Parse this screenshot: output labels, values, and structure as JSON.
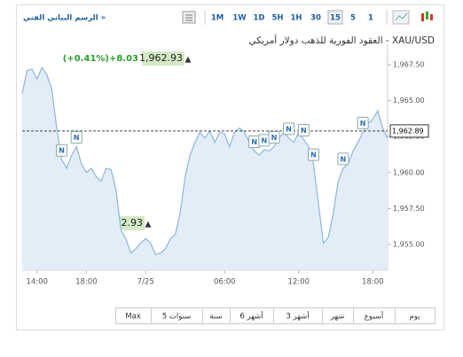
{
  "toolbar": {
    "link": "الرسم البياني الفني »",
    "intervals": [
      "1M",
      "1W",
      "1D",
      "5H",
      "1H",
      "30",
      "15",
      "5",
      "1"
    ],
    "selected_interval": "15"
  },
  "quote": {
    "change_pct": "(+0.41%)",
    "change": "+8.03",
    "price": "1,962.93"
  },
  "chart_data": {
    "type": "line",
    "title": "XAU/USD - العقود الفورية للذهب دولار أمريكي",
    "color": "#8db6da",
    "fill": "#e3edf7",
    "categories": [
      null,
      null,
      null,
      "14:00",
      null,
      null,
      null,
      null,
      null,
      null,
      null,
      null,
      null,
      "18:00",
      null,
      null,
      null,
      null,
      null,
      null,
      null,
      null,
      null,
      null,
      null,
      "7/25",
      null,
      null,
      null,
      null,
      null,
      null,
      null,
      null,
      null,
      null,
      null,
      null,
      null,
      null,
      null,
      "06:00",
      null,
      null,
      null,
      null,
      null,
      null,
      null,
      null,
      null,
      null,
      null,
      null,
      null,
      null,
      "12:00",
      null,
      null,
      null,
      null,
      null,
      null,
      null,
      null,
      null,
      null,
      null,
      null,
      null,
      null,
      "18:00",
      null,
      null,
      null
    ],
    "values": [
      1965.5,
      1967.1,
      1967.2,
      1966.5,
      1967.3,
      1966.8,
      1965.8,
      1963.1,
      1960.9,
      1960.3,
      1961.2,
      1961.8,
      1960.6,
      1960.0,
      1960.3,
      1959.7,
      1959.4,
      1960.3,
      1960.2,
      1958.8,
      1956.0,
      1955.4,
      1954.4,
      1954.7,
      1955.1,
      1955.4,
      1955.1,
      1954.3,
      1954.4,
      1954.7,
      1955.4,
      1955.7,
      1957.2,
      1959.7,
      1961.2,
      1962.1,
      1962.8,
      1962.4,
      1962.9,
      1962.1,
      1962.8,
      1962.7,
      1961.8,
      1962.8,
      1963.1,
      1962.8,
      1962.1,
      1961.5,
      1961.2,
      1961.6,
      1961.5,
      1961.8,
      1962.4,
      1962.8,
      1962.4,
      1962.1,
      1962.8,
      1962.3,
      1961.8,
      1960.6,
      1957.8,
      1955.1,
      1955.5,
      1957.2,
      1959.4,
      1960.3,
      1960.6,
      1961.5,
      1962.1,
      1962.8,
      1963.4,
      1963.7,
      1964.3,
      1963.1,
      1962.4
    ],
    "ylim": [
      1953.52,
      1968.92
    ],
    "yticks": [
      {
        "value": 1967.5,
        "label": "1,967.50"
      },
      {
        "value": 1965,
        "label": "1,965.00"
      },
      {
        "value": 1962.5,
        "label": "1,962.50"
      },
      {
        "value": 1960,
        "label": "1,960.00"
      },
      {
        "value": 1957.5,
        "label": "1,957.50"
      },
      {
        "value": 1955,
        "label": "1,955.00"
      }
    ],
    "last_price": {
      "value": 1962.89,
      "label": "1,962.89"
    },
    "news": [
      {
        "index": 8,
        "label": "N"
      },
      {
        "index": 11,
        "label": "N"
      },
      {
        "index": 47,
        "label": "N"
      },
      {
        "index": 49,
        "label": "N"
      },
      {
        "index": 51,
        "label": "N"
      },
      {
        "index": 54,
        "label": "N"
      },
      {
        "index": 57,
        "label": "N"
      },
      {
        "index": 59,
        "label": "N"
      },
      {
        "index": 65,
        "label": "N"
      },
      {
        "index": 69,
        "label": "N"
      }
    ]
  },
  "ranges": [
    "يوم",
    "أسبوع",
    "شهر",
    "3 أشهر",
    "6 أشهر",
    "سنة",
    "5 سنوات",
    "Max"
  ]
}
